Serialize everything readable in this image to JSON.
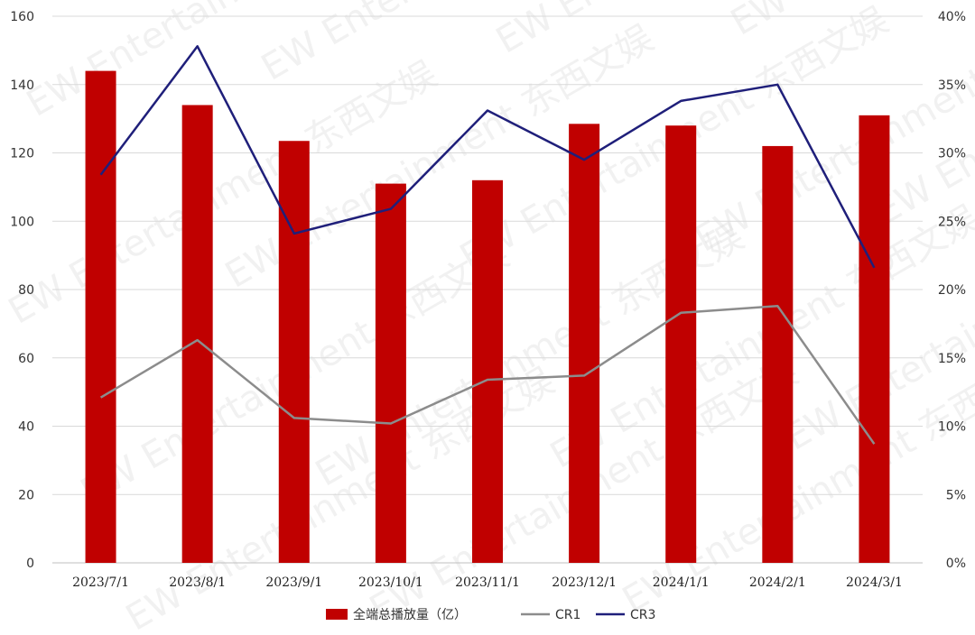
{
  "chart_data": {
    "type": "bar",
    "categories": [
      "2023/7/1",
      "2023/8/1",
      "2023/9/1",
      "2023/10/1",
      "2023/11/1",
      "2023/12/1",
      "2024/1/1",
      "2024/2/1",
      "2024/3/1"
    ],
    "series": [
      {
        "name": "全端总播放量（亿）",
        "type": "bar",
        "axis": "left",
        "color": "#c00000",
        "values": [
          144,
          134,
          123.5,
          111,
          112,
          128.5,
          128,
          122,
          131
        ]
      },
      {
        "name": "CR1",
        "type": "line",
        "axis": "right",
        "color": "#8c8c8c",
        "values": [
          12.1,
          16.3,
          10.6,
          10.2,
          13.4,
          13.7,
          18.3,
          18.8,
          8.7
        ]
      },
      {
        "name": "CR3",
        "type": "line",
        "axis": "right",
        "color": "#1f1f7a",
        "values": [
          28.4,
          37.8,
          24.1,
          25.9,
          33.1,
          29.5,
          33.8,
          35.0,
          21.6
        ]
      }
    ],
    "y_left": {
      "min": 0,
      "max": 160,
      "step": 20,
      "ticks": [
        "0",
        "20",
        "40",
        "60",
        "80",
        "100",
        "120",
        "140",
        "160"
      ]
    },
    "y_right": {
      "min": 0,
      "max": 40,
      "step": 5,
      "ticks": [
        "0%",
        "5%",
        "10%",
        "15%",
        "20%",
        "25%",
        "30%",
        "35%",
        "40%"
      ]
    },
    "grid": true,
    "legend": {
      "position": "bottom",
      "labels": [
        "全端总播放量（亿）",
        "CR1",
        "CR3"
      ]
    },
    "watermark": "EW Entertainment 东西文娱"
  }
}
